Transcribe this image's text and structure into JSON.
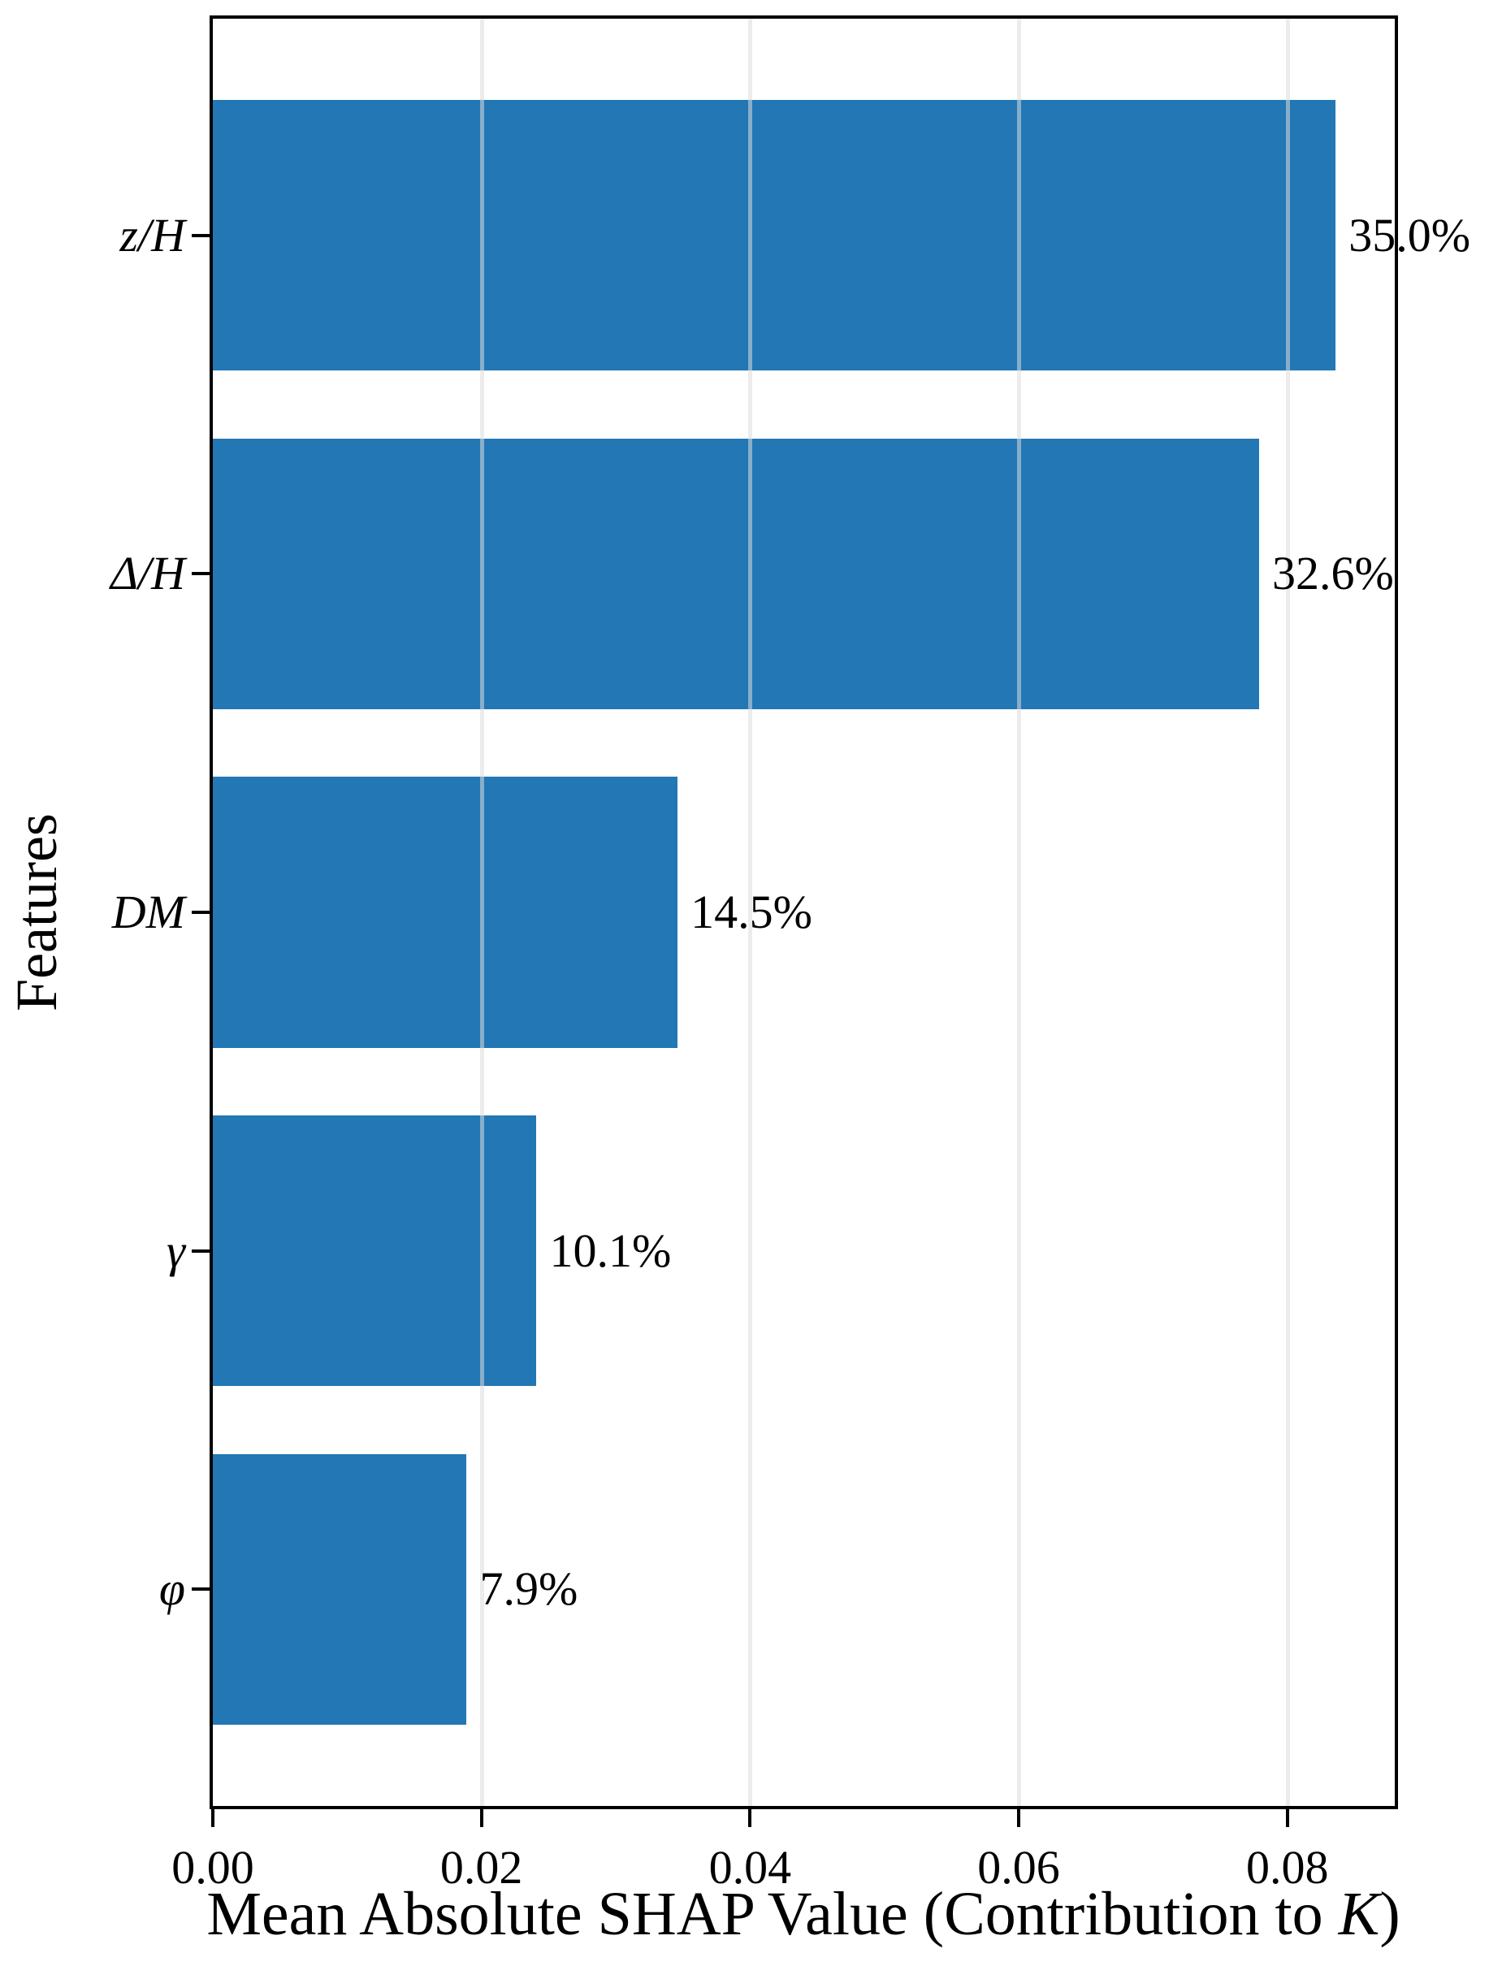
{
  "colors": {
    "bar": "#2277b4",
    "spine": "#000000",
    "grid": "#dcdcdc",
    "text": "#000000",
    "background": "#ffffff"
  },
  "chart_data": {
    "type": "bar",
    "orientation": "horizontal",
    "xlabel": "Mean Absolute SHAP Value (Contribution to K)",
    "xlabel_parts": {
      "prefix": "Mean Absolute SHAP Value (Contribution to ",
      "italic": "K",
      "suffix": ")"
    },
    "ylabel": "Features",
    "categories": [
      "z/H",
      "Δ/H",
      "DM",
      "γ",
      "φ"
    ],
    "values": [
      0.0836,
      0.0779,
      0.0346,
      0.0241,
      0.0189
    ],
    "bar_labels": [
      "35.0%",
      "32.6%",
      "14.5%",
      "10.1%",
      "7.9%"
    ],
    "x_ticks": [
      0.0,
      0.02,
      0.04,
      0.06,
      0.08
    ],
    "x_tick_labels": [
      "0.00",
      "0.02",
      "0.04",
      "0.06",
      "0.08"
    ],
    "xlim": [
      0,
      0.088
    ],
    "ylim_units": 5.28,
    "bar_height_units": 0.8,
    "top_margin_units": 0.64,
    "grid": true,
    "grid_axis": "x",
    "legend": false
  }
}
